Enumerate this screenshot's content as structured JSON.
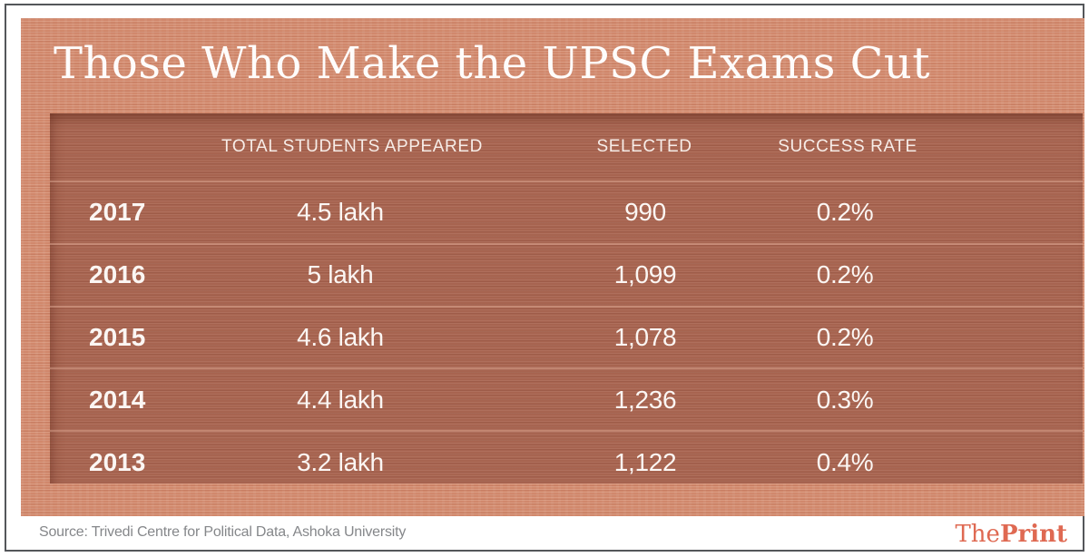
{
  "title": "Those Who Make the UPSC Exams Cut",
  "table": {
    "header": {
      "appeared": "TOTAL STUDENTS APPEARED",
      "selected": "SELECTED",
      "rate": "SUCCESS RATE"
    },
    "rows": [
      {
        "year": "2017",
        "appeared": "4.5 lakh",
        "selected": "990",
        "rate": "0.2%"
      },
      {
        "year": "2016",
        "appeared": "5 lakh",
        "selected": "1,099",
        "rate": "0.2%"
      },
      {
        "year": "2015",
        "appeared": "4.6 lakh",
        "selected": "1,078",
        "rate": "0.2%"
      },
      {
        "year": "2014",
        "appeared": "4.4 lakh",
        "selected": "1,236",
        "rate": "0.3%"
      },
      {
        "year": "2013",
        "appeared": "3.2 lakh",
        "selected": "1,122",
        "rate": "0.4%"
      }
    ]
  },
  "footer": {
    "source": "Source: Trivedi Centre for Political Data, Ashoka University",
    "brand_the": "The",
    "brand_print": "Print"
  },
  "colors": {
    "outer_background": "#d1886c",
    "panel_background": "#a76450",
    "title_text": "#ffffff",
    "brand_accent": "#df6952",
    "source_text": "#85878a",
    "frame_border": "#54565a"
  },
  "chart_data": {
    "type": "table",
    "title": "Those Who Make the UPSC Exams Cut",
    "columns": [
      "Year",
      "Total Students Appeared",
      "Selected",
      "Success Rate"
    ],
    "rows": [
      [
        "2017",
        "4.5 lakh",
        "990",
        "0.2%"
      ],
      [
        "2016",
        "5 lakh",
        "1,099",
        "0.2%"
      ],
      [
        "2015",
        "4.6 lakh",
        "1,078",
        "0.2%"
      ],
      [
        "2014",
        "4.4 lakh",
        "1,236",
        "0.3%"
      ],
      [
        "2013",
        "3.2 lakh",
        "1,122",
        "0.4%"
      ]
    ],
    "source": "Trivedi Centre for Political Data, Ashoka University",
    "publisher": "ThePrint"
  }
}
